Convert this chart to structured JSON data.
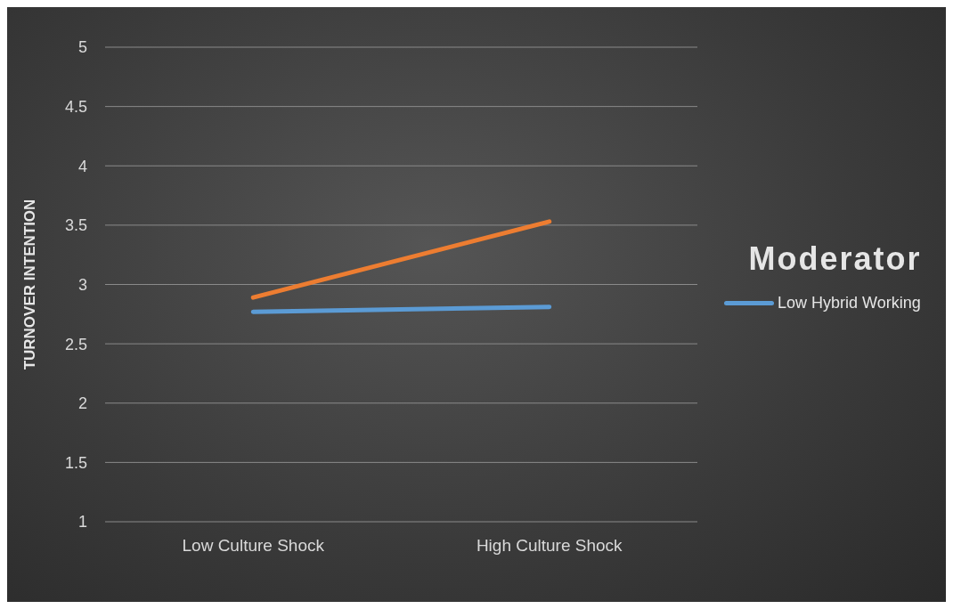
{
  "chart_data": {
    "type": "line",
    "ylabel": "TURNOVER INTENTION",
    "legend_title": "Moderator",
    "legend": "right",
    "grid": "y",
    "marker": "none",
    "line_style": "solid",
    "categories": [
      "Low Culture Shock",
      "High Culture Shock"
    ],
    "ylim": [
      1,
      5
    ],
    "yticks": [
      1,
      1.5,
      2,
      2.5,
      3,
      3.5,
      4,
      4.5,
      5
    ],
    "series": [
      {
        "color": "#ed7d31",
        "values": [
          2.89,
          3.53
        ]
      },
      {
        "name": "Low Hybrid Working",
        "color": "#5b9bd5",
        "values": [
          2.77,
          2.81
        ]
      }
    ]
  }
}
